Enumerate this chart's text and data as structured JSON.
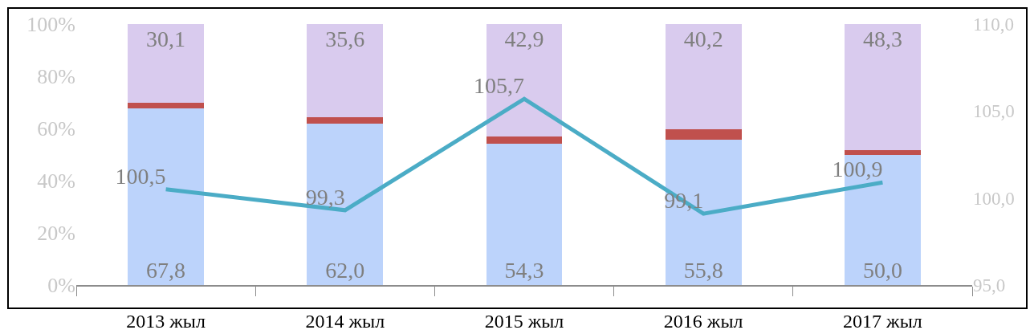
{
  "chart_data": {
    "type": "bar",
    "stacked": true,
    "categories": [
      "2013 жыл",
      "2014 жыл",
      "2015 жыл",
      "2016 жыл",
      "2017 жыл"
    ],
    "series": [
      {
        "color": "#bcd3fb",
        "values": [
          67.8,
          62.0,
          54.3,
          55.8,
          50.0
        ],
        "value_labels": [
          "67,8",
          "62,0",
          "54,3",
          "55,8",
          "50,0"
        ]
      },
      {
        "color": "#c0504d",
        "values": [
          2.1,
          2.4,
          2.8,
          4.0,
          1.7
        ]
      },
      {
        "color": "#d9cbee",
        "values": [
          30.1,
          35.6,
          42.9,
          40.2,
          48.3
        ],
        "value_labels": [
          "30,1",
          "35,6",
          "42,9",
          "40,2",
          "48,3"
        ]
      },
      {
        "type": "line",
        "axis": "y2",
        "color": "#4bacc6",
        "values": [
          100.5,
          99.3,
          105.7,
          99.1,
          100.9
        ],
        "value_labels": [
          "100,5",
          "99,3",
          "105,7",
          "99,1",
          "100,9"
        ]
      }
    ],
    "ylim": [
      0,
      100
    ],
    "yticks": [
      {
        "value": 0,
        "label": "0%"
      },
      {
        "value": 20,
        "label": "20%"
      },
      {
        "value": 40,
        "label": "40%"
      },
      {
        "value": 60,
        "label": "60%"
      },
      {
        "value": 80,
        "label": "80%"
      },
      {
        "value": 100,
        "label": "100%"
      }
    ],
    "y2lim": [
      95,
      110
    ],
    "y2ticks": [
      {
        "value": 95,
        "label": "95,0"
      },
      {
        "value": 100,
        "label": "100,0"
      },
      {
        "value": 105,
        "label": "105,0"
      },
      {
        "value": 110,
        "label": "110,0"
      }
    ],
    "grid": false
  }
}
